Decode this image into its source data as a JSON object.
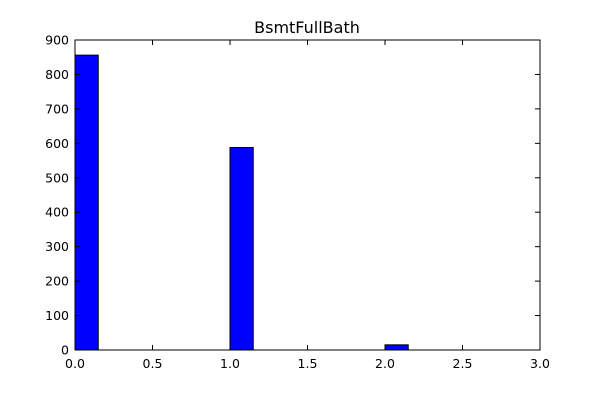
{
  "chart_data": {
    "type": "bar",
    "title": "BsmtFullBath",
    "xlabel": "",
    "ylabel": "",
    "xlim": [
      0,
      3
    ],
    "ylim": [
      0,
      900
    ],
    "bar_color": "#0000ff",
    "grid": false,
    "bins": [
      {
        "x0": 0.0,
        "x1": 0.15,
        "value": 856
      },
      {
        "x0": 1.0,
        "x1": 1.15,
        "value": 588
      },
      {
        "x0": 2.0,
        "x1": 2.15,
        "value": 15
      }
    ],
    "x_ticks": [
      0.0,
      0.5,
      1.0,
      1.5,
      2.0,
      2.5,
      3.0
    ],
    "x_tick_labels": [
      "0.0",
      "0.5",
      "1.0",
      "1.5",
      "2.0",
      "2.5",
      "3.0"
    ],
    "y_ticks": [
      0,
      100,
      200,
      300,
      400,
      500,
      600,
      700,
      800,
      900
    ],
    "y_tick_labels": [
      "0",
      "100",
      "200",
      "300",
      "400",
      "500",
      "600",
      "700",
      "800",
      "900"
    ]
  }
}
